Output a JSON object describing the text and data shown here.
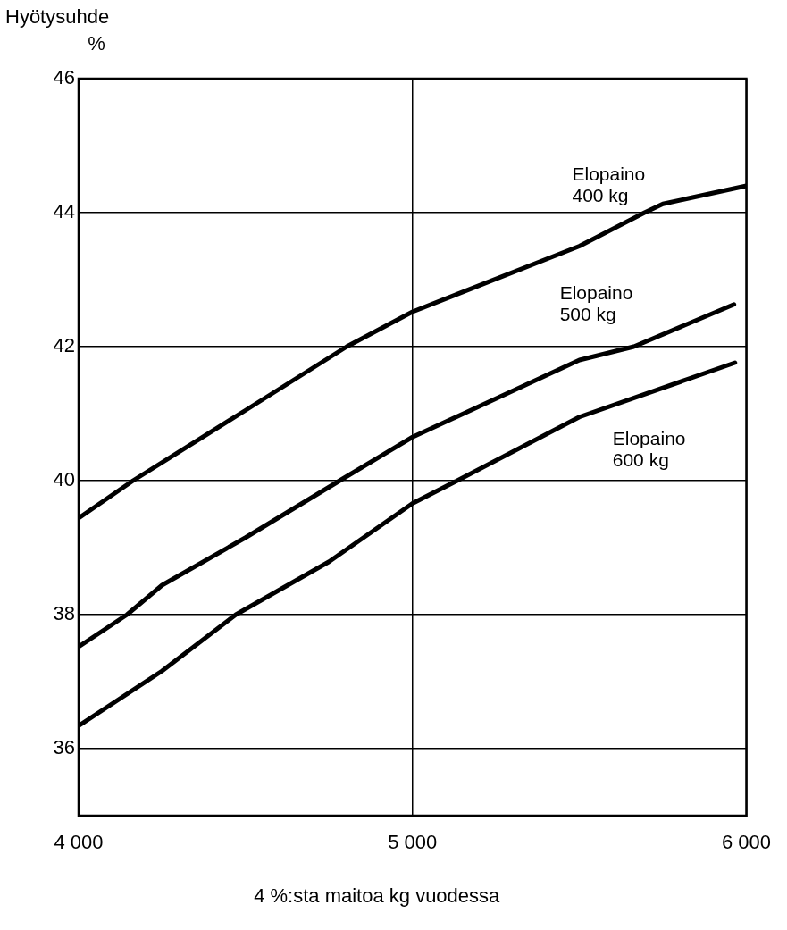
{
  "chart_data": {
    "type": "line",
    "xlabel": "4 %:sta maitoa kg vuodessa",
    "ylabel": "Hyötysuhde %",
    "xlim": [
      4000,
      6000
    ],
    "xticks": [
      {
        "value": 4000,
        "label": "4 000"
      },
      {
        "value": 5000,
        "label": "5 000"
      },
      {
        "value": 6000,
        "label": "6 000"
      }
    ],
    "ylim": [
      35,
      46
    ],
    "yticks": [
      36,
      38,
      40,
      42,
      44,
      46
    ],
    "grid": true,
    "legend": false,
    "marker": "none",
    "line_style": "solid",
    "series": [
      {
        "name": "Elopaino 400 kg",
        "color": "#000000",
        "x": [
          4000,
          4163,
          4500,
          4803,
          5000,
          5500,
          5695,
          5750,
          6000
        ],
        "values": [
          39.44,
          40,
          41.05,
          42,
          42.52,
          43.5,
          44,
          44.13,
          44.4
        ]
      },
      {
        "name": "Elopaino 500 kg",
        "color": "#000000",
        "x": [
          4000,
          4145,
          4250,
          4500,
          4782,
          5000,
          5500,
          5663,
          5963
        ],
        "values": [
          37.52,
          38,
          38.44,
          39.15,
          40,
          40.65,
          41.8,
          42,
          42.63
        ]
      },
      {
        "name": "Elopaino 600 kg",
        "color": "#000000",
        "x": [
          4000,
          4250,
          4471,
          4750,
          5000,
          5134,
          5500,
          5966
        ],
        "values": [
          36.34,
          37.16,
          38,
          38.79,
          39.66,
          40,
          40.95,
          41.76
        ]
      }
    ]
  }
}
